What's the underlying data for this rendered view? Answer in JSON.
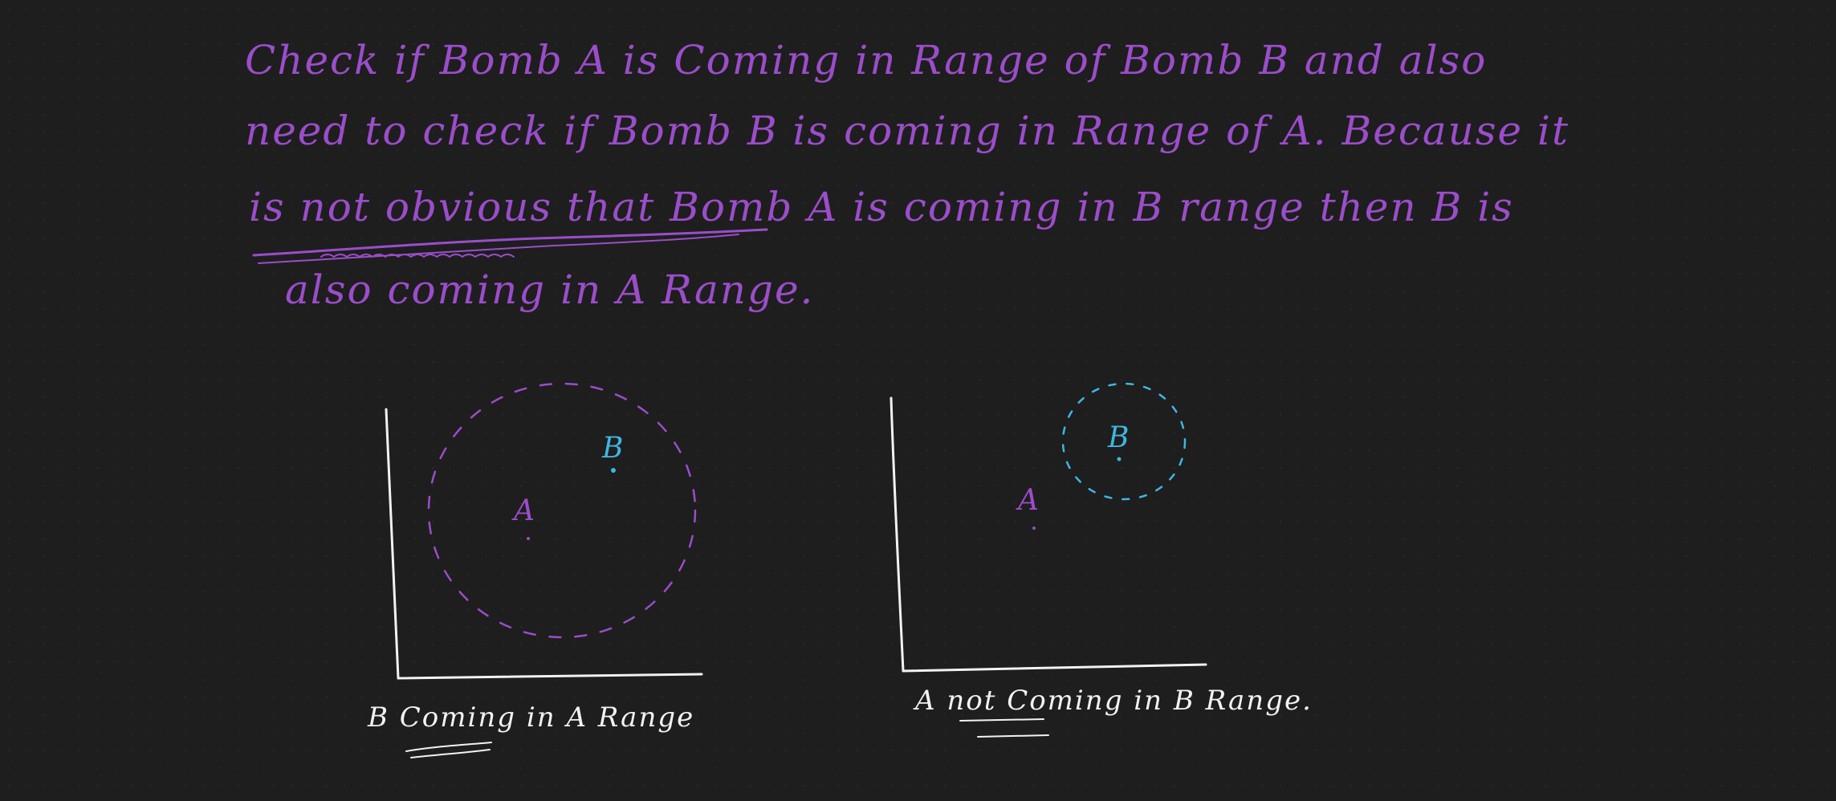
{
  "colors": {
    "background": "#1e1e1e",
    "note_ink": "#9b4dca",
    "diagram_ink": "#f2f2f2",
    "point_a_ink": "#9b4dca",
    "point_b_ink": "#3fb6e0"
  },
  "note": {
    "lines": [
      "Check if Bomb A is Coming in Range of Bomb B and also",
      "need to check if Bomb B is coming in Range of A. Because it",
      "is not obvious that Bomb A is coming in B range then B is",
      "also coming in A Range."
    ]
  },
  "diagram_left": {
    "point_a_label": "A",
    "point_b_label": "B",
    "caption": "B Coming in A Range"
  },
  "diagram_right": {
    "point_a_label": "A",
    "point_b_label": "B",
    "caption": "A not Coming in B Range."
  }
}
